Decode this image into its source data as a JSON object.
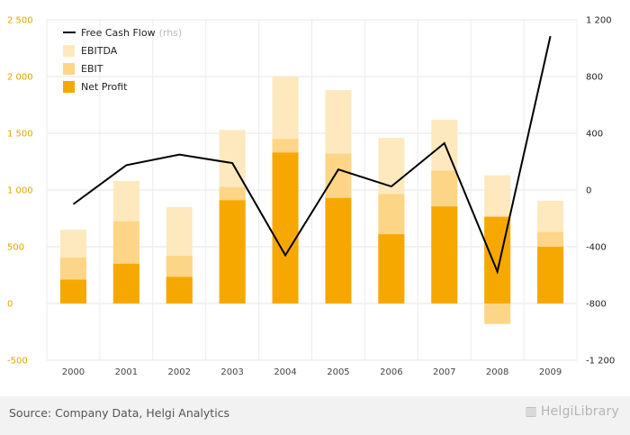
{
  "chart_data": {
    "type": "bar",
    "categories": [
      "2000",
      "2001",
      "2002",
      "2003",
      "2004",
      "2005",
      "2006",
      "2007",
      "2008",
      "2009"
    ],
    "series": [
      {
        "name": "EBITDA",
        "kind": "bar",
        "axis": "left",
        "color": "#fde9bd",
        "values": [
          650,
          1080,
          850,
          1530,
          2000,
          1880,
          1460,
          1620,
          1130,
          905
        ]
      },
      {
        "name": "EBIT",
        "kind": "bar",
        "axis": "left",
        "color": "#fdd587",
        "values": [
          405,
          725,
          420,
          1025,
          1450,
          1320,
          965,
          1170,
          -180,
          630
        ]
      },
      {
        "name": "Net Profit",
        "kind": "bar",
        "axis": "left",
        "color": "#f7a800",
        "values": [
          210,
          350,
          235,
          910,
          1330,
          930,
          610,
          855,
          765,
          500
        ]
      },
      {
        "name": "Free Cash Flow",
        "kind": "line",
        "axis": "right",
        "color": "#000000",
        "values": [
          -100,
          175,
          250,
          190,
          -460,
          145,
          25,
          330,
          -575,
          1085
        ]
      }
    ],
    "ylim_left": [
      -500,
      2500
    ],
    "yticks_left": [
      2500,
      2000,
      1500,
      1000,
      500,
      0,
      -500
    ],
    "yticks_left_labels": [
      "2 500",
      "2 000",
      "1 500",
      "1 000",
      "500",
      "0",
      "-500"
    ],
    "ylim_right": [
      -1200,
      1200
    ],
    "yticks_right": [
      1200,
      800,
      400,
      0,
      -400,
      -800,
      -1200
    ],
    "yticks_right_labels": [
      "1 200",
      "800",
      "400",
      "0",
      "-400",
      "-800",
      "-1 200"
    ],
    "legend": [
      {
        "label": "Free Cash Flow",
        "note": "(rhs)",
        "marker": "line",
        "color": "#000000"
      },
      {
        "label": "EBITDA",
        "marker": "square",
        "color": "#fde9bd"
      },
      {
        "label": "EBIT",
        "marker": "square",
        "color": "#fdd587"
      },
      {
        "label": "Net Profit",
        "marker": "square",
        "color": "#f7a800"
      }
    ],
    "legend_position": "top-left",
    "grid": true
  },
  "footer": {
    "source": "Source: Company Data, Helgi Analytics",
    "logo_text": "HelgiLibrary"
  }
}
